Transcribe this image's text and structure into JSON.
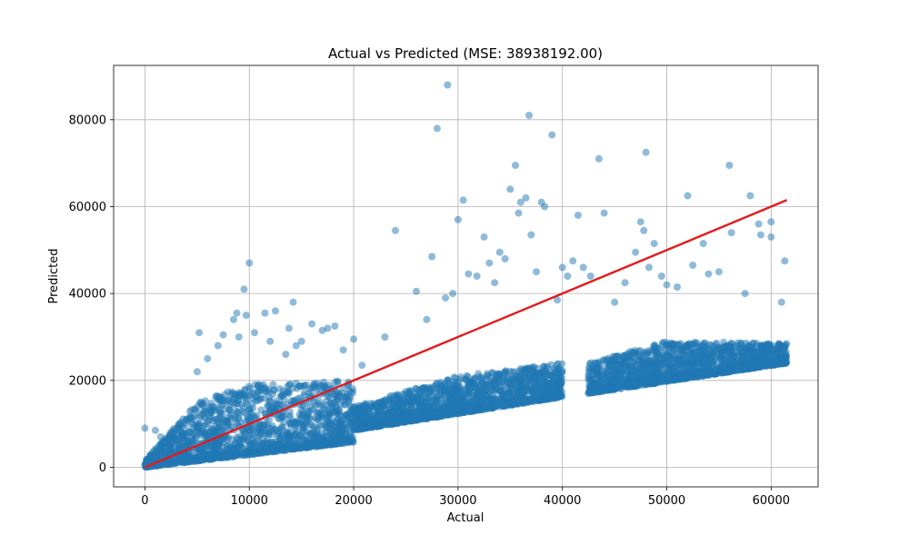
{
  "chart_data": {
    "type": "scatter",
    "title": "Actual vs Predicted (MSE: 38938192.00)",
    "xlabel": "Actual",
    "ylabel": "Predicted",
    "xlim": [
      -3000,
      64500
    ],
    "ylim": [
      -4500,
      92500
    ],
    "xticks": [
      0,
      10000,
      20000,
      30000,
      40000,
      50000,
      60000
    ],
    "yticks": [
      0,
      20000,
      40000,
      60000,
      80000
    ],
    "xtick_labels": [
      "0",
      "10000",
      "20000",
      "30000",
      "40000",
      "50000",
      "60000"
    ],
    "ytick_labels": [
      "0",
      "20000",
      "40000",
      "60000",
      "80000"
    ],
    "grid": true,
    "point_color": "#1f77b4",
    "point_alpha": 0.5,
    "line_color": "#e31a1c",
    "reference_line": {
      "x": [
        0,
        61500
      ],
      "y": [
        0,
        61500
      ]
    },
    "dense_bands": [
      {
        "x_range": [
          0,
          20000
        ],
        "lower": [
          [
            0,
            0
          ],
          [
            20000,
            5800
          ]
        ],
        "upper": [
          [
            0,
            1500
          ],
          [
            5000,
            15000
          ],
          [
            10000,
            19000
          ],
          [
            20000,
            20000
          ]
        ]
      },
      {
        "x_range": [
          20000,
          40000
        ],
        "lower": [
          [
            20000,
            8500
          ],
          [
            40000,
            16200
          ]
        ],
        "upper": [
          [
            20000,
            14000
          ],
          [
            30000,
            21000
          ],
          [
            40000,
            24000
          ]
        ]
      },
      {
        "x_range": [
          42500,
          61500
        ],
        "lower": [
          [
            42500,
            17000
          ],
          [
            61500,
            24000
          ]
        ],
        "upper": [
          [
            42500,
            24000
          ],
          [
            50000,
            29000
          ],
          [
            61500,
            28500
          ]
        ]
      }
    ],
    "outliers": [
      [
        0,
        9000
      ],
      [
        1000,
        8500
      ],
      [
        1500,
        7000
      ],
      [
        2500,
        6500
      ],
      [
        4000,
        11000
      ],
      [
        5000,
        22000
      ],
      [
        5200,
        31000
      ],
      [
        6000,
        25000
      ],
      [
        7000,
        28000
      ],
      [
        7500,
        30500
      ],
      [
        8500,
        34000
      ],
      [
        8800,
        35500
      ],
      [
        9500,
        41000
      ],
      [
        10000,
        47000
      ],
      [
        9000,
        30000
      ],
      [
        9700,
        35000
      ],
      [
        10500,
        31000
      ],
      [
        11500,
        35500
      ],
      [
        12000,
        29000
      ],
      [
        12500,
        36000
      ],
      [
        13500,
        26000
      ],
      [
        13800,
        32000
      ],
      [
        14200,
        38000
      ],
      [
        14500,
        28000
      ],
      [
        15000,
        29000
      ],
      [
        16000,
        33000
      ],
      [
        17000,
        31500
      ],
      [
        17500,
        32000
      ],
      [
        18200,
        32500
      ],
      [
        19000,
        27000
      ],
      [
        20000,
        29500
      ],
      [
        20800,
        23500
      ],
      [
        23000,
        30000
      ],
      [
        24000,
        54500
      ],
      [
        26000,
        40500
      ],
      [
        27000,
        34000
      ],
      [
        27500,
        48500
      ],
      [
        28000,
        78000
      ],
      [
        28800,
        39000
      ],
      [
        29000,
        88000
      ],
      [
        29500,
        40000
      ],
      [
        30000,
        57000
      ],
      [
        30500,
        61500
      ],
      [
        31000,
        44500
      ],
      [
        31800,
        44000
      ],
      [
        32500,
        53000
      ],
      [
        33000,
        47000
      ],
      [
        33500,
        42500
      ],
      [
        34000,
        49500
      ],
      [
        34500,
        48000
      ],
      [
        35000,
        64000
      ],
      [
        35500,
        69500
      ],
      [
        35800,
        58500
      ],
      [
        36000,
        61000
      ],
      [
        36500,
        62000
      ],
      [
        36800,
        81000
      ],
      [
        37000,
        53500
      ],
      [
        37500,
        45000
      ],
      [
        38000,
        61000
      ],
      [
        38300,
        60000
      ],
      [
        39000,
        76500
      ],
      [
        39500,
        38500
      ],
      [
        40000,
        46000
      ],
      [
        40500,
        44000
      ],
      [
        41000,
        47500
      ],
      [
        41500,
        58000
      ],
      [
        42000,
        46000
      ],
      [
        42700,
        44000
      ],
      [
        43500,
        71000
      ],
      [
        44000,
        58500
      ],
      [
        45000,
        38000
      ],
      [
        46000,
        42500
      ],
      [
        47000,
        49500
      ],
      [
        47500,
        56500
      ],
      [
        47800,
        54500
      ],
      [
        48000,
        72500
      ],
      [
        48300,
        46000
      ],
      [
        48800,
        51500
      ],
      [
        49500,
        44000
      ],
      [
        50000,
        42000
      ],
      [
        51000,
        41500
      ],
      [
        52000,
        62500
      ],
      [
        52500,
        46500
      ],
      [
        53500,
        51500
      ],
      [
        54000,
        44500
      ],
      [
        55000,
        45000
      ],
      [
        56000,
        69500
      ],
      [
        56200,
        54000
      ],
      [
        57500,
        40000
      ],
      [
        58000,
        62500
      ],
      [
        58800,
        56000
      ],
      [
        59000,
        53500
      ],
      [
        60000,
        56500
      ],
      [
        60000,
        53000
      ],
      [
        61300,
        47500
      ],
      [
        61000,
        38000
      ]
    ]
  }
}
